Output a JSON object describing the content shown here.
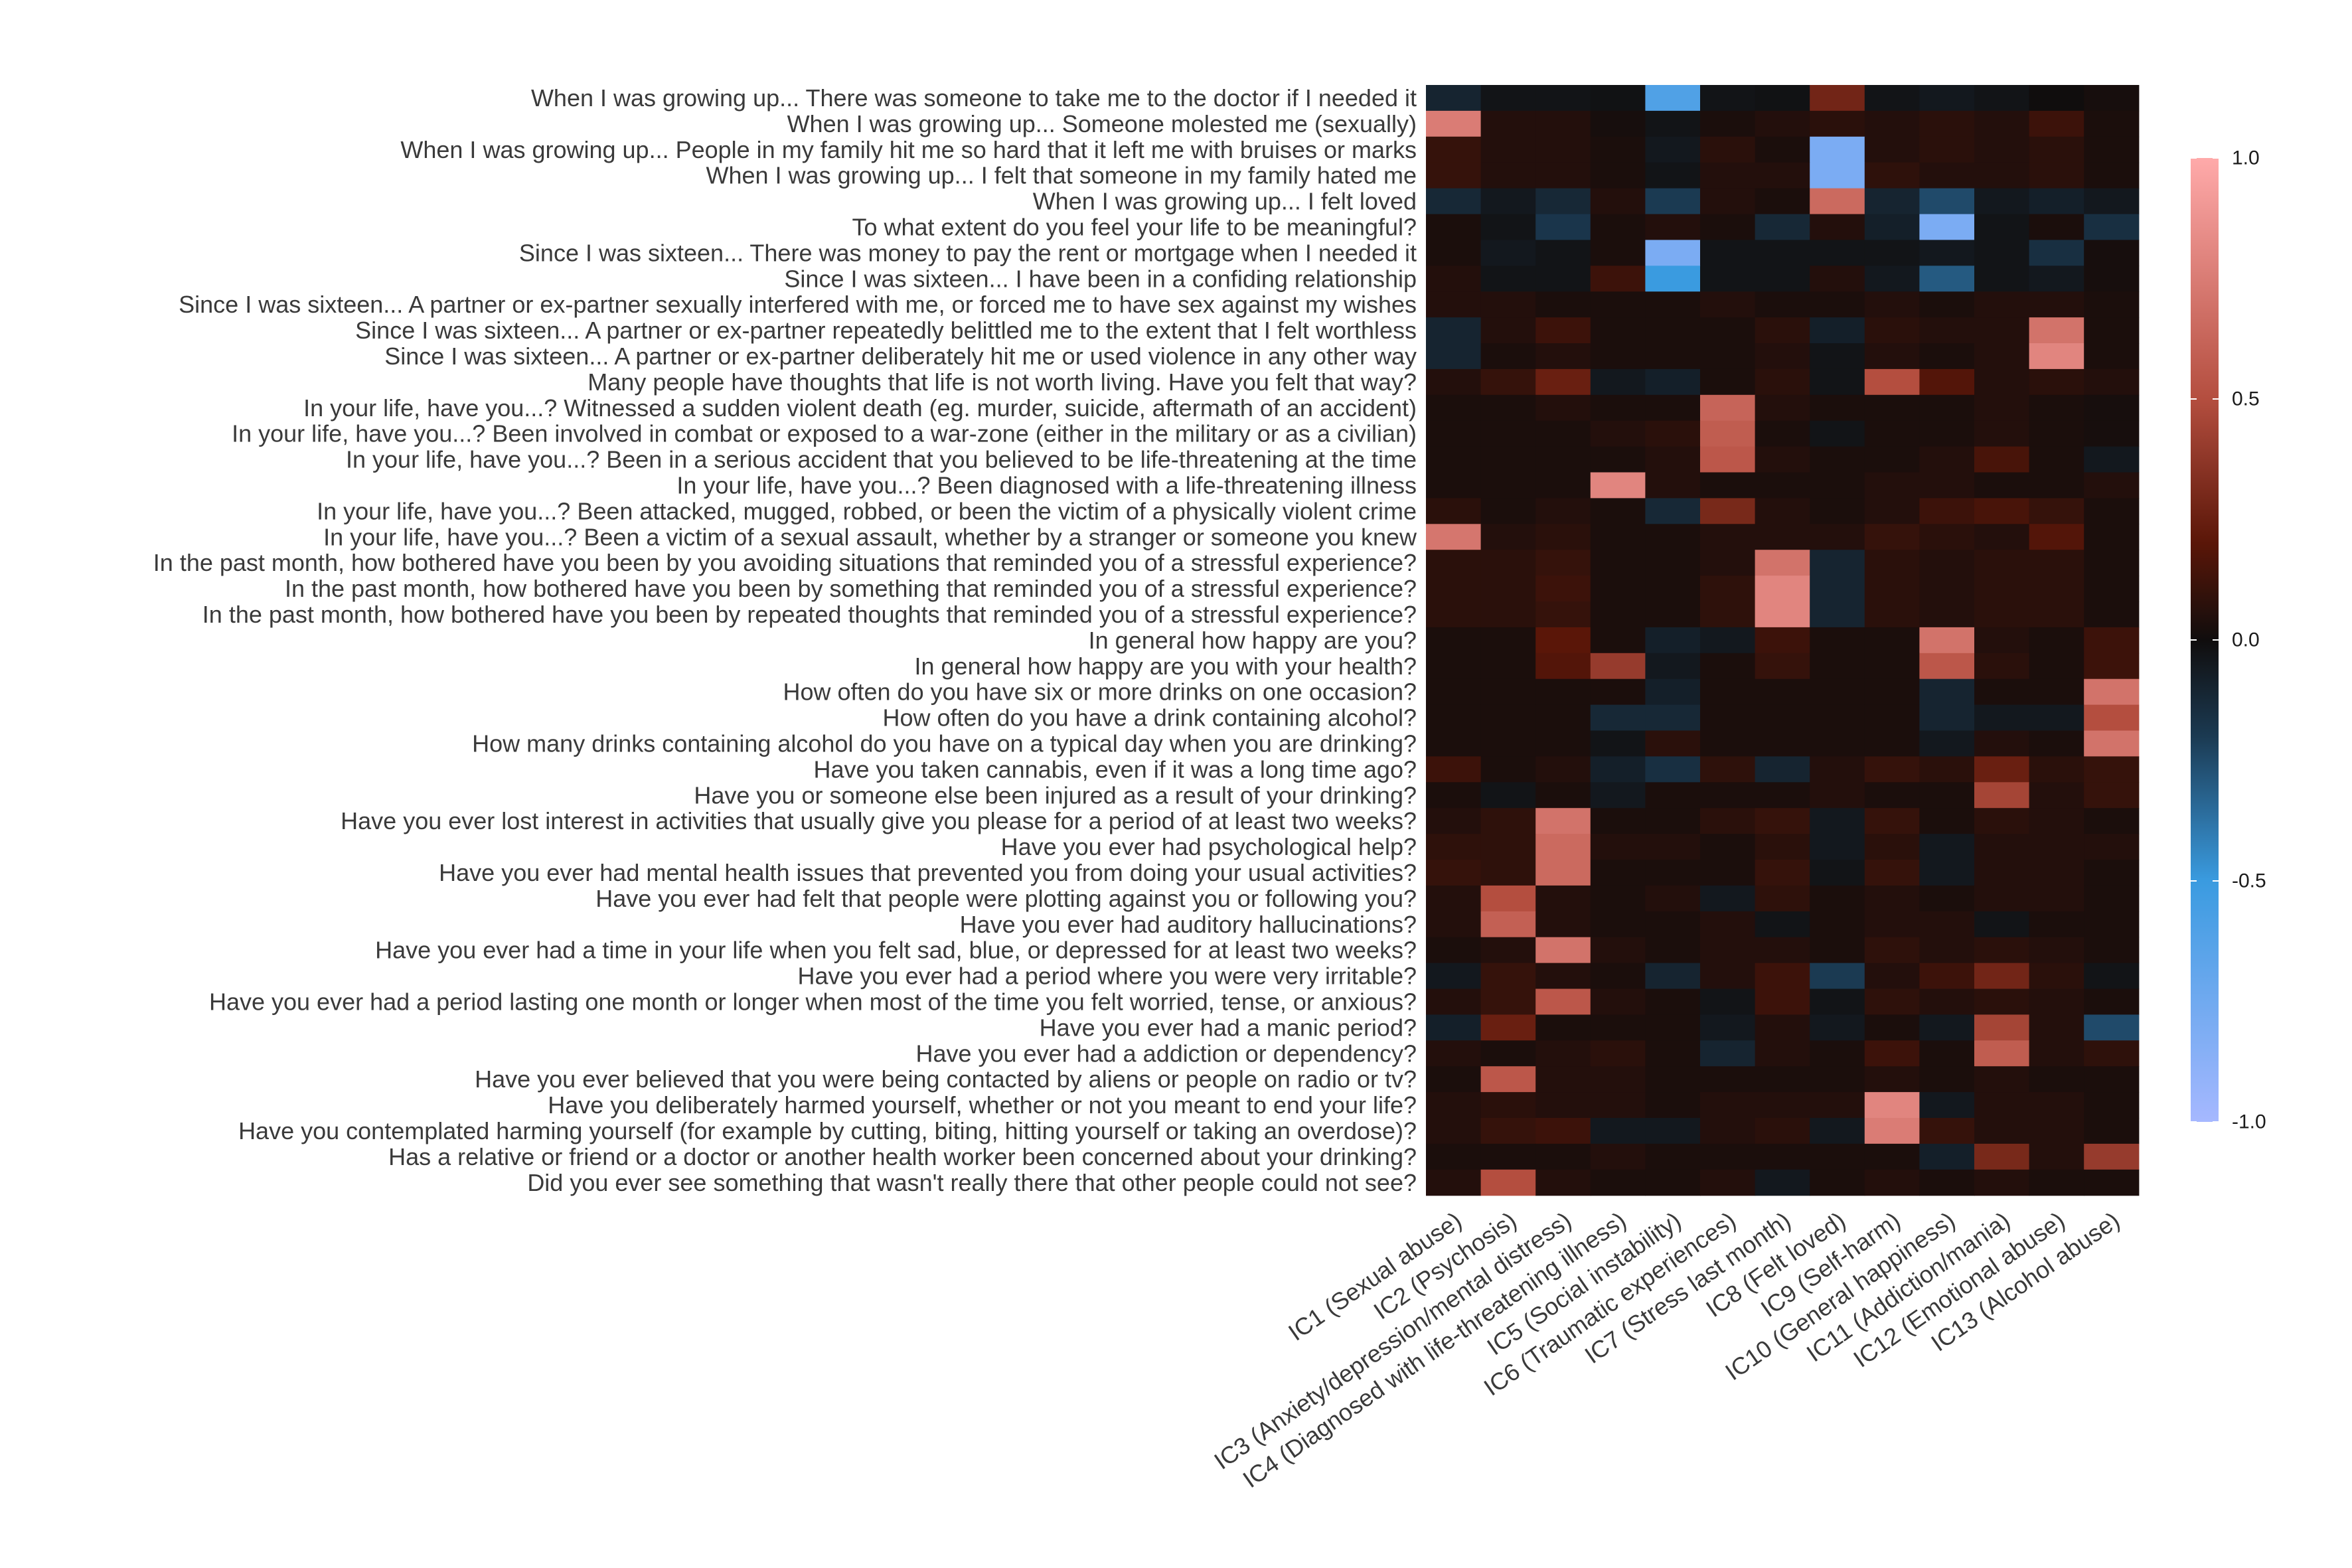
{
  "chart_data": {
    "type": "heatmap",
    "title": "",
    "xlabel": "",
    "ylabel": "",
    "columns": [
      "IC1 (Sexual abuse)",
      "IC2 (Psychosis)",
      "IC3 (Anxiety/depression/mental distress)",
      "IC4 (Diagnosed with life-threatening illness)",
      "IC5 (Social instability)",
      "IC6 (Traumatic experiences)",
      "IC7 (Stress last month)",
      "IC8 (Felt loved)",
      "IC9 (Self-harm)",
      "IC10 (General happiness)",
      "IC11 (Addiction/mania)",
      "IC12 (Emotional abuse)",
      "IC13 (Alcohol abuse)"
    ],
    "rows": [
      "When I was growing up... There was someone to take me to the doctor if I needed it",
      "When I was growing up... Someone molested me (sexually)",
      "When I was growing up... People in my family hit me so hard that it left me with bruises or marks",
      "When I was growing up... I felt that someone in my family hated me",
      "When I was growing up... I felt loved",
      "To what extent do you feel your life to be meaningful?",
      "Since I was sixteen... There was money to pay the rent or mortgage when I needed it",
      "Since I was sixteen... I have been in a confiding relationship",
      "Since I was sixteen... A partner or ex-partner sexually interfered with me, or forced me to have sex against my wishes",
      "Since I was sixteen... A partner or ex-partner repeatedly belittled me to the extent that I felt worthless",
      "Since I was sixteen... A partner or ex-partner deliberately hit me or used violence in any other way",
      "Many people have thoughts that life is not worth living. Have you felt that way?",
      "In your life, have you...? Witnessed a sudden violent death (eg. murder, suicide, aftermath of an accident)",
      "In your life, have you...? Been involved in combat or exposed to a war-zone (either in the military or as a civilian)",
      "In your life, have you...? Been in a serious accident that you believed to be life-threatening at the time",
      "In your life, have you...? Been diagnosed with a life-threatening illness",
      "In your life, have you...? Been attacked, mugged, robbed, or been the victim of a physically violent crime",
      "In your life, have you...? Been a victim of a sexual assault, whether by a stranger or someone you knew",
      "In the past month, how bothered have you been by you avoiding situations that reminded you of a stressful experience?",
      "In the past month, how bothered have you been by something that reminded you of a stressful experience?",
      "In the past month, how bothered have you been by repeated thoughts that reminded you of a stressful experience?",
      "In general how happy are you?",
      "In general how happy are you with your health?",
      "How often do you have six or more drinks on one occasion?",
      "How often do you have a drink containing alcohol?",
      "How many drinks containing alcohol do you have on a typical day when you are drinking?",
      "Have you taken cannabis, even if it was a long time ago?",
      "Have you or someone else been injured as a result of your drinking?",
      "Have you ever lost interest in activities that usually give you please for a period of at least two weeks?",
      "Have you ever had psychological help?",
      "Have you ever had mental health issues that prevented you from doing your usual activities?",
      "Have you ever had felt that people were plotting against you or following you?",
      "Have you ever had auditory hallucinations?",
      "Have you ever had a time in your life when you felt sad, blue, or depressed for at least two weeks?",
      "Have you ever had a period where you were very irritable?",
      "Have you ever had a period lasting one month or longer when most of the time you felt worried, tense, or anxious?",
      "Have you ever had a manic period?",
      "Have you ever had a addiction or dependency?",
      "Have you ever believed that you were being contacted by aliens or people on radio or tv?",
      "Have you deliberately harmed yourself, whether or not you meant to end your life?",
      "Have you contemplated harming yourself (for example by cutting, biting, hitting yourself or taking an overdose)?",
      "Has a relative or friend or a doctor or another health worker been concerned about your drinking?",
      "Did you ever see something that wasn't really there that other people could not see?"
    ],
    "values": [
      [
        -0.1,
        -0.03,
        -0.03,
        -0.02,
        -0.6,
        -0.03,
        -0.02,
        0.28,
        -0.03,
        -0.05,
        -0.03,
        0.0,
        0.02
      ],
      [
        0.75,
        0.05,
        0.05,
        0.02,
        -0.03,
        0.03,
        0.05,
        0.07,
        0.05,
        0.07,
        0.05,
        0.12,
        0.03
      ],
      [
        0.1,
        0.05,
        0.05,
        0.03,
        -0.05,
        0.07,
        0.03,
        -0.8,
        0.05,
        0.07,
        0.05,
        0.07,
        0.03
      ],
      [
        0.1,
        0.05,
        0.05,
        0.03,
        -0.03,
        0.05,
        0.05,
        -0.8,
        0.08,
        0.05,
        0.05,
        0.07,
        0.03
      ],
      [
        -0.12,
        -0.05,
        -0.12,
        0.05,
        -0.2,
        0.05,
        0.03,
        0.65,
        -0.1,
        -0.25,
        -0.05,
        -0.08,
        -0.05
      ],
      [
        0.03,
        -0.03,
        -0.18,
        0.03,
        0.05,
        0.03,
        -0.12,
        0.05,
        -0.08,
        -0.8,
        -0.03,
        0.03,
        -0.15
      ],
      [
        0.03,
        -0.05,
        -0.03,
        0.03,
        -0.8,
        -0.03,
        -0.03,
        -0.03,
        -0.03,
        -0.05,
        -0.03,
        -0.15,
        0.02
      ],
      [
        0.05,
        -0.03,
        -0.03,
        0.12,
        -0.5,
        -0.03,
        -0.03,
        0.05,
        -0.05,
        -0.3,
        -0.03,
        -0.05,
        0.02
      ],
      [
        0.05,
        0.05,
        0.03,
        0.03,
        0.03,
        0.05,
        0.03,
        0.03,
        0.05,
        0.03,
        0.05,
        0.05,
        0.03
      ],
      [
        -0.1,
        0.05,
        0.12,
        0.03,
        0.03,
        0.03,
        0.07,
        -0.08,
        0.07,
        0.05,
        0.05,
        0.7,
        0.03
      ],
      [
        -0.1,
        0.03,
        0.05,
        0.03,
        0.03,
        0.03,
        0.05,
        -0.03,
        0.05,
        0.03,
        0.05,
        0.8,
        0.03
      ],
      [
        0.05,
        0.1,
        0.25,
        -0.05,
        -0.08,
        0.03,
        0.07,
        -0.03,
        0.5,
        0.18,
        0.05,
        0.07,
        0.05
      ],
      [
        0.03,
        0.03,
        0.05,
        0.03,
        0.03,
        0.62,
        0.05,
        0.03,
        0.03,
        0.03,
        0.05,
        0.03,
        0.02
      ],
      [
        0.03,
        0.03,
        0.03,
        0.05,
        0.07,
        0.58,
        0.03,
        -0.03,
        0.03,
        0.03,
        0.05,
        0.03,
        0.02
      ],
      [
        0.03,
        0.03,
        0.03,
        0.03,
        0.05,
        0.55,
        0.05,
        0.03,
        0.03,
        0.05,
        0.15,
        0.03,
        -0.05
      ],
      [
        0.03,
        0.03,
        0.03,
        0.8,
        0.05,
        0.03,
        0.03,
        0.03,
        0.05,
        0.05,
        0.03,
        0.03,
        0.05
      ],
      [
        0.07,
        0.03,
        0.05,
        0.03,
        -0.12,
        0.3,
        0.05,
        0.03,
        0.05,
        0.12,
        0.15,
        0.1,
        0.03
      ],
      [
        0.72,
        0.05,
        0.07,
        0.03,
        0.03,
        0.05,
        0.05,
        0.05,
        0.1,
        0.07,
        0.05,
        0.18,
        0.03
      ],
      [
        0.07,
        0.07,
        0.1,
        0.03,
        0.03,
        0.05,
        0.7,
        -0.1,
        0.07,
        0.05,
        0.07,
        0.07,
        0.03
      ],
      [
        0.07,
        0.07,
        0.12,
        0.03,
        0.03,
        0.08,
        0.8,
        -0.1,
        0.07,
        0.05,
        0.07,
        0.07,
        0.03
      ],
      [
        0.07,
        0.07,
        0.1,
        0.03,
        0.03,
        0.08,
        0.8,
        -0.1,
        0.07,
        0.05,
        0.07,
        0.07,
        0.03
      ],
      [
        0.03,
        0.03,
        0.2,
        0.03,
        -0.08,
        -0.05,
        0.12,
        0.03,
        0.03,
        0.7,
        0.05,
        0.03,
        0.12
      ],
      [
        0.03,
        0.03,
        0.18,
        0.4,
        -0.05,
        0.03,
        0.1,
        0.03,
        0.03,
        0.55,
        0.07,
        0.03,
        0.12
      ],
      [
        0.03,
        0.03,
        0.03,
        0.03,
        -0.08,
        0.03,
        0.03,
        0.03,
        0.03,
        -0.1,
        0.03,
        0.03,
        0.7
      ],
      [
        0.03,
        0.03,
        0.03,
        -0.12,
        -0.12,
        0.03,
        0.03,
        0.03,
        0.03,
        -0.1,
        -0.05,
        -0.05,
        0.5
      ],
      [
        0.03,
        0.03,
        0.03,
        -0.03,
        0.07,
        0.03,
        0.03,
        0.03,
        0.03,
        -0.05,
        0.05,
        0.03,
        0.7
      ],
      [
        0.12,
        0.03,
        0.05,
        -0.08,
        -0.15,
        0.08,
        -0.1,
        0.05,
        0.1,
        0.07,
        0.25,
        0.07,
        0.1
      ],
      [
        0.03,
        -0.03,
        0.03,
        -0.05,
        0.03,
        0.03,
        0.03,
        0.05,
        0.03,
        0.03,
        0.45,
        0.05,
        0.1
      ],
      [
        0.05,
        0.08,
        0.7,
        0.03,
        0.03,
        0.07,
        0.1,
        -0.05,
        0.1,
        0.03,
        0.07,
        0.05,
        0.03
      ],
      [
        0.08,
        0.08,
        0.65,
        0.05,
        0.05,
        0.03,
        0.07,
        -0.05,
        0.07,
        -0.05,
        0.05,
        0.05,
        0.05
      ],
      [
        0.1,
        0.08,
        0.65,
        0.03,
        0.03,
        0.03,
        0.1,
        -0.03,
        0.1,
        -0.05,
        0.05,
        0.05,
        0.03
      ],
      [
        0.05,
        0.5,
        0.05,
        0.03,
        0.05,
        -0.05,
        0.08,
        0.03,
        0.05,
        0.03,
        0.05,
        0.05,
        0.03
      ],
      [
        0.05,
        0.6,
        0.05,
        0.03,
        0.03,
        0.05,
        -0.03,
        0.03,
        0.05,
        0.05,
        -0.03,
        0.03,
        0.03
      ],
      [
        0.03,
        0.05,
        0.7,
        0.05,
        0.03,
        0.05,
        0.05,
        0.03,
        0.08,
        0.05,
        0.07,
        0.05,
        0.03
      ],
      [
        -0.05,
        0.1,
        0.05,
        0.03,
        -0.1,
        0.05,
        0.12,
        -0.2,
        0.05,
        0.12,
        0.28,
        0.07,
        -0.03
      ],
      [
        0.05,
        0.1,
        0.55,
        0.05,
        0.03,
        -0.03,
        0.12,
        -0.03,
        0.08,
        0.05,
        0.07,
        0.05,
        0.03
      ],
      [
        -0.08,
        0.25,
        0.03,
        0.03,
        0.03,
        -0.05,
        0.05,
        -0.05,
        0.03,
        -0.05,
        0.45,
        0.05,
        -0.25
      ],
      [
        0.05,
        0.03,
        0.05,
        0.07,
        0.03,
        -0.1,
        0.05,
        0.03,
        0.12,
        0.03,
        0.58,
        0.05,
        0.08
      ],
      [
        0.03,
        0.55,
        0.05,
        0.05,
        0.03,
        0.03,
        0.03,
        0.03,
        0.05,
        0.03,
        0.05,
        0.03,
        0.03
      ],
      [
        0.05,
        0.07,
        0.05,
        0.05,
        0.03,
        0.05,
        0.05,
        0.05,
        0.8,
        -0.05,
        0.05,
        0.05,
        0.03
      ],
      [
        0.05,
        0.1,
        0.12,
        -0.05,
        -0.05,
        0.05,
        0.07,
        -0.05,
        0.75,
        0.1,
        0.05,
        0.05,
        0.03
      ],
      [
        0.03,
        0.03,
        0.03,
        0.05,
        0.03,
        0.03,
        0.03,
        0.03,
        0.03,
        -0.08,
        0.3,
        0.05,
        0.4
      ],
      [
        0.05,
        0.5,
        0.05,
        0.03,
        0.03,
        0.05,
        -0.05,
        0.03,
        0.05,
        0.03,
        0.05,
        0.03,
        0.03
      ]
    ],
    "scale": {
      "min": -1.0,
      "max": 1.0,
      "ticks": [
        1.0,
        0.5,
        0.0,
        -0.5,
        -1.0
      ],
      "tick_labels": [
        "1.0",
        "0.5",
        "0.0",
        "-0.5",
        "-1.0"
      ],
      "colors": {
        "neg_end": "#a6b8ff",
        "neg_mid": "#3a9be0",
        "neg_low": "#1b3a52",
        "zero": "#100d0d",
        "pos_low": "#5a1608",
        "pos_mid": "#b44e3f",
        "pos_end": "#ffaaaa"
      }
    },
    "grid": false,
    "legend": "right"
  }
}
